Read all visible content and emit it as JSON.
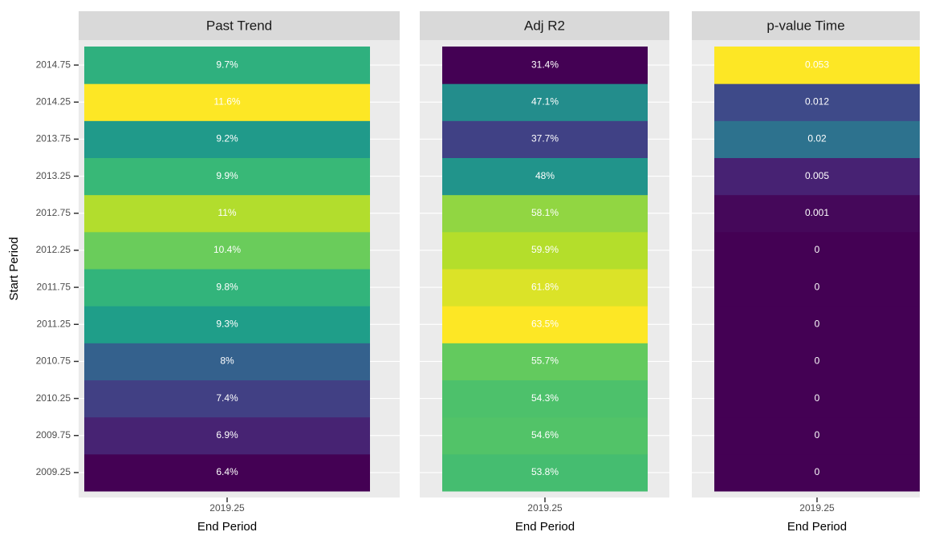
{
  "chart_data": {
    "type": "heatmap",
    "colormap": "viridis",
    "ylabel": "Start Period",
    "xlabel": "End Period",
    "x": [
      2019.25
    ],
    "categories": [
      2009.25,
      2009.75,
      2010.25,
      2010.75,
      2011.25,
      2011.75,
      2012.25,
      2012.75,
      2013.25,
      2013.75,
      2014.25,
      2014.75
    ],
    "facets": [
      {
        "title": "Past Trend",
        "values": [
          6.4,
          6.9,
          7.4,
          8,
          9.3,
          9.8,
          10.4,
          11,
          9.9,
          9.2,
          11.6,
          9.7
        ],
        "value_labels": [
          "6.4%",
          "6.9%",
          "7.4%",
          "8%",
          "9.3%",
          "9.8%",
          "10.4%",
          "11%",
          "9.9%",
          "9.2%",
          "11.6%",
          "9.7%"
        ]
      },
      {
        "title": "Adj R2",
        "values": [
          53.8,
          54.6,
          54.3,
          55.7,
          63.5,
          61.8,
          59.9,
          58.1,
          48,
          37.7,
          47.1,
          31.4
        ],
        "value_labels": [
          "53.8%",
          "54.6%",
          "54.3%",
          "55.7%",
          "63.5%",
          "61.8%",
          "59.9%",
          "58.1%",
          "48%",
          "37.7%",
          "47.1%",
          "31.4%"
        ]
      },
      {
        "title": "p-value Time",
        "values": [
          0,
          0,
          0,
          0,
          0,
          0,
          0,
          0.001,
          0.005,
          0.02,
          0.012,
          0.053
        ]
      }
    ]
  }
}
